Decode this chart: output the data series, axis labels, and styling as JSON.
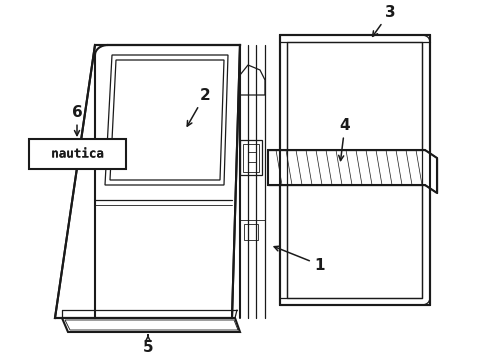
{
  "bg_color": "#ffffff",
  "line_color": "#1a1a1a",
  "fig_width": 4.9,
  "fig_height": 3.6,
  "dpi": 100,
  "arrow_color": "#111111"
}
